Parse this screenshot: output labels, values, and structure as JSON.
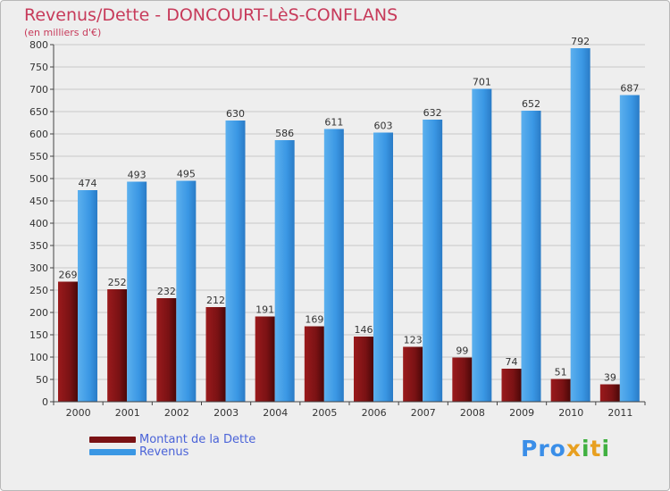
{
  "title": "Revenus/Dette - DONCOURT-LèS-CONFLANS",
  "subtitle": "(en milliers d'€)",
  "logo": {
    "text": "Proxiti",
    "colors": [
      "#3a8ee8",
      "#e8a020",
      "#40b040"
    ]
  },
  "colors": {
    "dette": "#7a1214",
    "revenus": "#3a97e4",
    "title": "#c73a5a",
    "legend_text": "#4a63d8"
  },
  "chart_data": {
    "type": "bar",
    "title": "Revenus/Dette - DONCOURT-LèS-CONFLANS",
    "ylabel": "(en milliers d'€)",
    "xlabel": "",
    "ylim": [
      0,
      800
    ],
    "yticks": [
      0,
      50,
      100,
      150,
      200,
      250,
      300,
      350,
      400,
      450,
      500,
      550,
      600,
      650,
      700,
      750,
      800
    ],
    "grid": true,
    "legend_position": "bottom-left",
    "categories": [
      "2000",
      "2001",
      "2002",
      "2003",
      "2004",
      "2005",
      "2006",
      "2007",
      "2008",
      "2009",
      "2010",
      "2011"
    ],
    "series": [
      {
        "name": "Montant de la Dette",
        "color": "#7a1214",
        "values": [
          269,
          252,
          232,
          212,
          191,
          169,
          146,
          123,
          99,
          74,
          51,
          39
        ]
      },
      {
        "name": "Revenus",
        "color": "#3a97e4",
        "values": [
          474,
          493,
          495,
          630,
          586,
          611,
          603,
          632,
          701,
          652,
          792,
          687
        ]
      }
    ]
  }
}
